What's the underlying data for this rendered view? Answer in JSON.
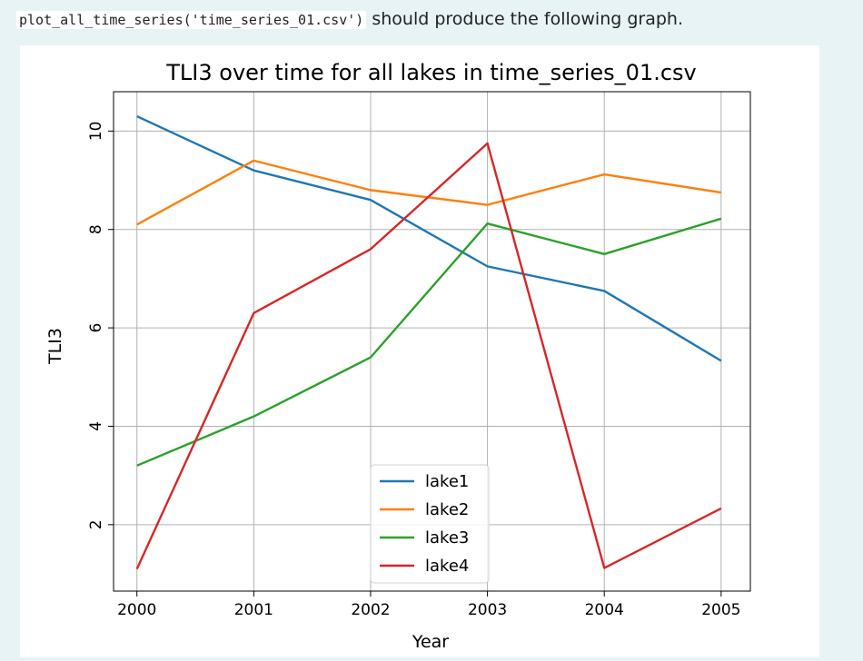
{
  "intro": {
    "code": "plot_all_time_series('time_series_01.csv')",
    "text": " should produce the following graph."
  },
  "chart_data": {
    "type": "line",
    "title": "TLI3 over time for all lakes in time_series_01.csv",
    "xlabel": "Year",
    "ylabel": "TLI3",
    "x": [
      2000,
      2001,
      2002,
      2003,
      2004,
      2005
    ],
    "xlim": [
      1999.8,
      2005.25
    ],
    "ylim": [
      0.65,
      10.8
    ],
    "xticks": [
      2000,
      2001,
      2002,
      2003,
      2004,
      2005
    ],
    "yticks": [
      2,
      4,
      6,
      8,
      10
    ],
    "grid": true,
    "legend_position": "lower-center",
    "series": [
      {
        "name": "lake1",
        "color": "#1f77b4",
        "values": [
          10.3,
          9.2,
          8.6,
          7.25,
          6.75,
          5.33
        ]
      },
      {
        "name": "lake2",
        "color": "#ff7f0e",
        "values": [
          8.1,
          9.4,
          8.8,
          8.5,
          9.12,
          8.75
        ]
      },
      {
        "name": "lake3",
        "color": "#2ca02c",
        "values": [
          3.2,
          4.2,
          5.4,
          8.12,
          7.5,
          8.22
        ]
      },
      {
        "name": "lake4",
        "color": "#d62728",
        "values": [
          1.1,
          6.3,
          7.6,
          9.75,
          1.12,
          2.33
        ]
      }
    ]
  }
}
